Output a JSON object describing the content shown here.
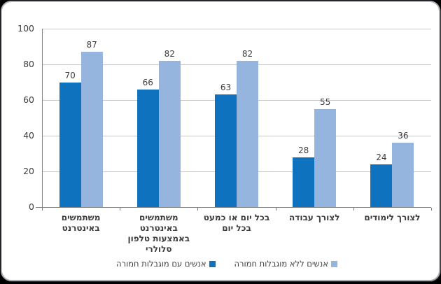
{
  "chart_data": {
    "type": "bar",
    "categories": [
      "משתמשים באינטרנט",
      "משתמשים באינטרנט באמצעות טלפון סלולרי",
      "בכל יום או כמעט בכל יום",
      "לצורך עבודה",
      "לצורך לימודים"
    ],
    "category_lines": [
      [
        "משתמשים",
        "באינטרנט"
      ],
      [
        "משתמשים",
        "באינטרנט",
        "באמצעות טלפון",
        "סלולרי"
      ],
      [
        "בכל יום או כמעט",
        "בכל יום"
      ],
      [
        "לצורך עבודה"
      ],
      [
        "לצורך לימודים"
      ]
    ],
    "series": [
      {
        "name": "אנשים עם מוגבלות חמורה",
        "color": "#0f72be",
        "values": [
          70,
          66,
          63,
          28,
          24
        ]
      },
      {
        "name": "אנשים ללא מוגבלות חמורה",
        "color": "#96b5de",
        "values": [
          87,
          82,
          82,
          55,
          36
        ]
      }
    ],
    "title": "",
    "xlabel": "",
    "ylabel": "",
    "ylim": [
      0,
      100
    ],
    "yticks": [
      0,
      20,
      40,
      60,
      80,
      100
    ],
    "grid": true,
    "legend_position": "bottom",
    "colors": {
      "gridline": "#c8c8c8",
      "axis": "#808080",
      "text": "#3d3d3d",
      "frame_border": "#a9aeb4",
      "background_outer": "#000000",
      "background_inner": "#ffffff"
    }
  }
}
